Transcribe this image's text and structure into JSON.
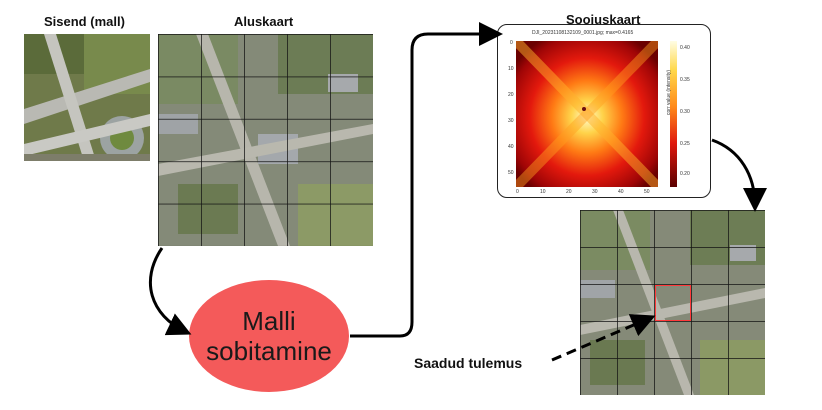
{
  "labels": {
    "input_template": "Sisend (mall)",
    "base_map": "Aluskaart",
    "heatmap": "Soojuskaart",
    "process": [
      "Malli",
      "sobitamine"
    ],
    "result": "Saadud tulemus"
  },
  "heatmap": {
    "title": "DJI_20231108132109_0001.jpg; max=0.4165",
    "x_ticks": [
      "0",
      "10",
      "20",
      "30",
      "40",
      "50"
    ],
    "y_ticks": [
      "0",
      "10",
      "20",
      "30",
      "40",
      "50"
    ],
    "colorbar_ticks": [
      "0.40",
      "0.35",
      "0.30",
      "0.25",
      "0.20"
    ],
    "colorbar_label": "corr value (intensity)"
  },
  "colors": {
    "ellipse": "#f45a5a",
    "match_box": "#ff3a3a",
    "arrow": "#000000"
  }
}
